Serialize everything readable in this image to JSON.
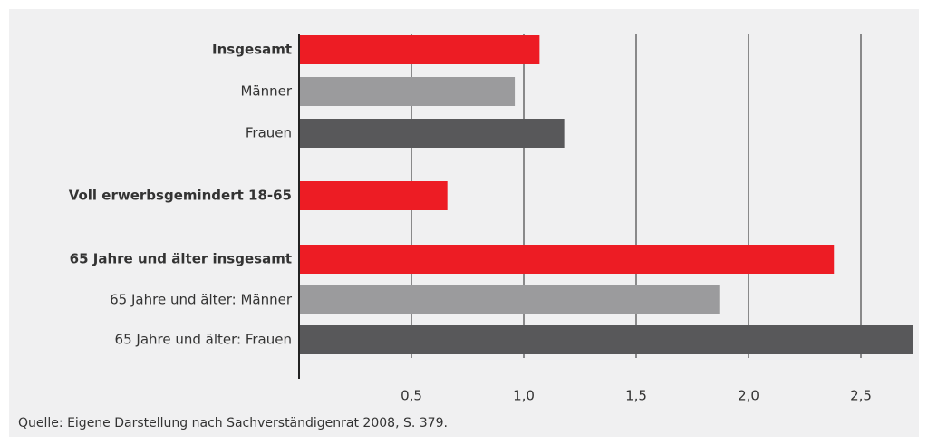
{
  "chart_data": {
    "type": "hbar",
    "categories": [
      "Insgesamt",
      "Männer",
      "Frauen",
      "Voll erwerbsgemindert 18-65",
      "65 Jahre und älter insgesamt",
      "65 Jahre und älter: Männer",
      "65 Jahre und älter: Frauen"
    ],
    "values": [
      1.07,
      0.96,
      1.18,
      0.66,
      2.38,
      1.87,
      2.73
    ],
    "colors": [
      "#ed1c24",
      "#9b9b9d",
      "#58585a",
      "#ed1c24",
      "#ed1c24",
      "#9b9b9d",
      "#58585a"
    ],
    "bold": [
      true,
      false,
      false,
      true,
      true,
      false,
      false
    ],
    "xlim": [
      0,
      2.75
    ],
    "xticks": [
      {
        "value": 0.5,
        "label": "0,5"
      },
      {
        "value": 1.0,
        "label": "1,0"
      },
      {
        "value": 1.5,
        "label": "1,5"
      },
      {
        "value": 2.0,
        "label": "2,0"
      },
      {
        "value": 2.5,
        "label": "2,5"
      }
    ],
    "grid": true,
    "source": "Quelle: Eigene Darstellung nach Sachverständigenrat 2008, S. 379."
  }
}
